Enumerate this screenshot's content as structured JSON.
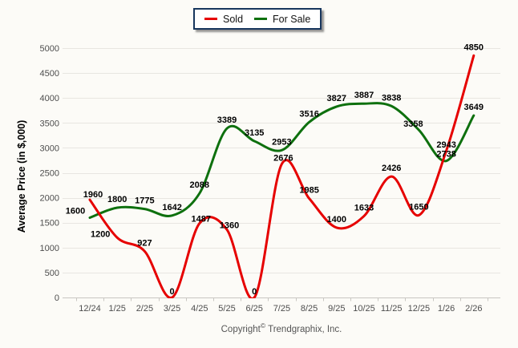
{
  "legend": {
    "items": [
      {
        "label": "Sold",
        "color": "#e60000"
      },
      {
        "label": "For Sale",
        "color": "#0e700e"
      }
    ]
  },
  "footer": {
    "copyright_prefix": "Copyright",
    "copyright_symbol": "©",
    "copyright_suffix": "Trendgraphix, Inc."
  },
  "chart_data": {
    "type": "line",
    "title": "",
    "xlabel": "",
    "ylabel": "Average Price (in $,000)",
    "ylim": [
      0,
      5000
    ],
    "y_ticks": [
      0,
      500,
      1000,
      1500,
      2000,
      2500,
      3000,
      3500,
      4000,
      4500,
      5000
    ],
    "grid": true,
    "legend_position": "top-center",
    "smooth": true,
    "show_data_labels": true,
    "categories": [
      "12/24",
      "1/25",
      "2/25",
      "3/25",
      "4/25",
      "5/25",
      "6/25",
      "7/25",
      "8/25",
      "9/25",
      "10/25",
      "11/25",
      "12/25",
      "1/26",
      "2/26"
    ],
    "series": [
      {
        "name": "Sold",
        "color": "#e60000",
        "values": [
          1960,
          1200,
          927,
          0,
          1487,
          1360,
          0,
          2676,
          1985,
          1400,
          1633,
          2426,
          1650,
          2943,
          4850
        ]
      },
      {
        "name": "For Sale",
        "color": "#0e700e",
        "values": [
          1600,
          1800,
          1775,
          1642,
          2088,
          3389,
          3135,
          2953,
          3516,
          3827,
          3887,
          3838,
          3358,
          2738,
          3649
        ]
      }
    ]
  }
}
